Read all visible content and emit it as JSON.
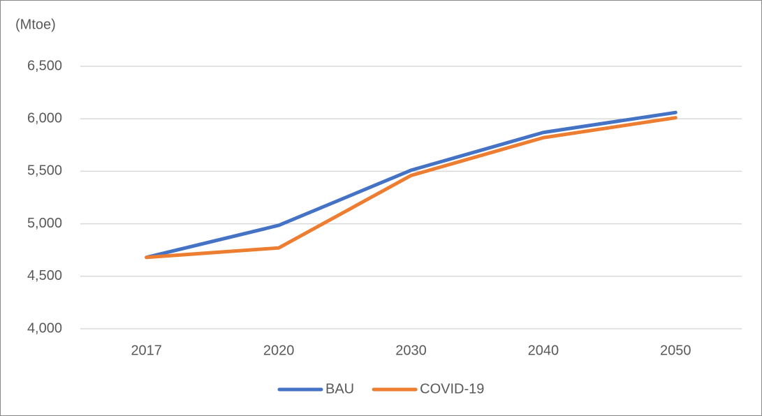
{
  "chart_data": {
    "type": "line",
    "y_unit_label": "(Mtoe)",
    "categories": [
      "2017",
      "2020",
      "2030",
      "2040",
      "2050"
    ],
    "series": [
      {
        "name": "BAU",
        "color": "#4472c4",
        "values": [
          4680,
          4985,
          5510,
          5870,
          6060
        ]
      },
      {
        "name": "COVID-19",
        "color": "#ed7d31",
        "values": [
          4680,
          4770,
          5460,
          5820,
          6010
        ]
      }
    ],
    "ylim": [
      4000,
      6500
    ],
    "yticks": [
      {
        "value": 4000,
        "label": "4,000"
      },
      {
        "value": 4500,
        "label": "4,500"
      },
      {
        "value": 5000,
        "label": "5,000"
      },
      {
        "value": 5500,
        "label": "5,500"
      },
      {
        "value": 6000,
        "label": "6,000"
      },
      {
        "value": 6500,
        "label": "6,500"
      }
    ],
    "grid": true,
    "legend": "bottom"
  }
}
